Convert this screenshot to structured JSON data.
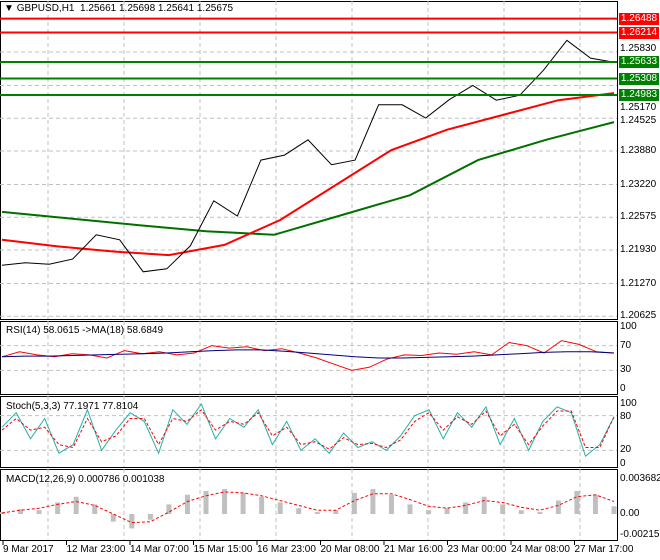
{
  "header": {
    "symbol": "GBPUSD,H1",
    "open": "1.25661",
    "high": "1.25698",
    "low": "1.25641",
    "close": "1.25675"
  },
  "colors": {
    "bull": "#000000",
    "ma_fast": "#ff0000",
    "ma_slow": "#007000",
    "bands": "#2f4f4f",
    "rsi": "#ff0000",
    "rsi_ma": "#000080",
    "stoch_main": "#20b2aa",
    "stoch_signal": "#ff0000",
    "macd_hist": "#c0c0c0",
    "macd_signal": "#ff0000"
  },
  "price_axis": [
    "1.25830",
    "1.25170",
    "1.24525",
    "1.23880",
    "1.23220",
    "1.22575",
    "1.21930",
    "1.21270",
    "1.20625"
  ],
  "levels": [
    {
      "value": "1.26488",
      "color": "#ff0000"
    },
    {
      "value": "1.26214",
      "color": "#ff0000"
    },
    {
      "value": "1.25633",
      "color": "#008000"
    },
    {
      "value": "1.25308",
      "color": "#008000"
    },
    {
      "value": "1.24983",
      "color": "#008000"
    }
  ],
  "time_axis": [
    "9 Mar 2017",
    "12 Mar 23:00",
    "14 Mar 07:00",
    "15 Mar 15:00",
    "16 Mar 23:00",
    "20 Mar 08:00",
    "21 Mar 16:00",
    "23 Mar 00:00",
    "24 Mar 08:00",
    "27 Mar 17:00"
  ],
  "rsi": {
    "label": "RSI(14) 58.0615  ->MA(18) 58.6849",
    "axis": [
      "100",
      "70",
      "30",
      "0"
    ]
  },
  "stoch": {
    "label": "Stoch(5,3,3) 77.1971 77.8104",
    "axis": [
      "100",
      "80",
      "20",
      "0"
    ]
  },
  "macd": {
    "label": "MACD(12,26,9) 0.000786 0.001038",
    "axis": [
      "0.003682",
      "0.00",
      "-0.002151"
    ]
  },
  "chart_data": [
    {
      "type": "line",
      "title": "GBPUSD,H1",
      "ylim": [
        1.20625,
        1.26488
      ],
      "series": [
        {
          "values": [
            1.2163,
            1.2168,
            1.2165,
            1.2175,
            1.2223,
            1.2213,
            1.215,
            1.2156,
            1.2201,
            1.229,
            1.226,
            1.237,
            1.238,
            1.241,
            1.2361,
            1.237,
            1.2479,
            1.2479,
            1.2453,
            1.2489,
            1.2517,
            1.2488,
            1.2498,
            1.2547,
            1.2606,
            1.2571,
            1.2563
          ]
        },
        {
          "values": [
            1.2213,
            1.22,
            1.219,
            1.2183,
            1.2203,
            1.2252,
            1.2321,
            1.239,
            1.243,
            1.2459,
            1.2488,
            1.2502
          ]
        },
        {
          "values": [
            1.2268,
            1.2255,
            1.2242,
            1.223,
            1.2223,
            1.2262,
            1.2301,
            1.237,
            1.241,
            1.2445
          ]
        }
      ]
    },
    {
      "type": "line",
      "title": "RSI(14)",
      "ylim": [
        0,
        100
      ],
      "series": [
        {
          "values": [
            52,
            60,
            55,
            52,
            57,
            55,
            50,
            62,
            57,
            60,
            55,
            58,
            70,
            66,
            68,
            62,
            65,
            58,
            50,
            40,
            30,
            35,
            48,
            55,
            54,
            58,
            56,
            60,
            55,
            75,
            70,
            58,
            78,
            72,
            60,
            58
          ]
        },
        {
          "values": [
            52,
            53,
            53,
            54,
            55,
            56,
            57,
            58,
            60,
            62,
            63,
            63,
            61,
            58,
            55,
            52,
            50,
            50,
            51,
            52,
            53,
            55,
            57,
            59,
            60,
            60,
            58
          ]
        }
      ]
    },
    {
      "type": "line",
      "title": "Stoch(5,3,3)",
      "ylim": [
        0,
        100
      ],
      "series": [
        {
          "values": [
            60,
            85,
            40,
            75,
            15,
            30,
            90,
            20,
            55,
            85,
            70,
            15,
            90,
            65,
            100,
            40,
            75,
            60,
            90,
            30,
            70,
            20,
            40,
            15,
            50,
            25,
            35,
            20,
            45,
            80,
            90,
            40,
            85,
            60,
            95,
            30,
            75,
            20,
            70,
            95,
            85,
            10,
            30,
            78
          ]
        },
        {
          "values": [
            55,
            75,
            55,
            60,
            30,
            25,
            75,
            35,
            45,
            75,
            75,
            30,
            75,
            70,
            90,
            55,
            70,
            65,
            85,
            45,
            60,
            30,
            35,
            22,
            42,
            30,
            32,
            25,
            38,
            70,
            85,
            55,
            78,
            65,
            88,
            45,
            65,
            30,
            62,
            88,
            88,
            25,
            25,
            78
          ]
        }
      ]
    },
    {
      "type": "bar",
      "title": "MACD(12,26,9)",
      "ylim": [
        -0.002151,
        0.003682
      ],
      "series": [
        {
          "values": [
            0.0002,
            0.0005,
            0.0004,
            0.0012,
            0.0018,
            0.001,
            -0.0008,
            -0.0015,
            -0.0006,
            0.001,
            0.002,
            0.0024,
            0.0026,
            0.0022,
            0.0018,
            0.0012,
            0.0006,
            0.0002,
            0.0004,
            0.0022,
            0.0026,
            0.002,
            0.001,
            0.0004,
            0.0006,
            0.0012,
            0.0018,
            0.001,
            0.0004,
            0.0002,
            0.0014,
            0.0024,
            0.002,
            0.0008
          ]
        },
        {
          "values": [
            0.0001,
            0.0004,
            0.0006,
            0.001,
            0.0013,
            0.0009,
            0.0,
            -0.0009,
            -0.0008,
            0.0002,
            0.0013,
            0.0019,
            0.0023,
            0.0022,
            0.0019,
            0.0014,
            0.0009,
            0.0004,
            0.0004,
            0.0014,
            0.0021,
            0.0021,
            0.0015,
            0.0008,
            0.0006,
            0.0009,
            0.0014,
            0.0012,
            0.0007,
            0.0004,
            0.0009,
            0.0018,
            0.002,
            0.0013
          ]
        }
      ]
    }
  ]
}
